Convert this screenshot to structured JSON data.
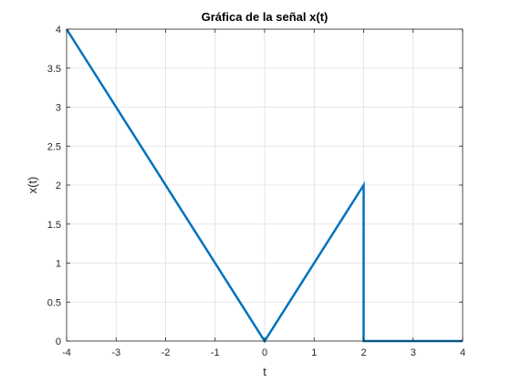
{
  "chart_data": {
    "type": "line",
    "title": "Gráfica de la señal x(t)",
    "xlabel": "t",
    "ylabel": "x(t)",
    "xlim": [
      -4,
      4
    ],
    "ylim": [
      0,
      4
    ],
    "xticks": [
      -4,
      -3,
      -2,
      -1,
      0,
      1,
      2,
      3,
      4
    ],
    "xtick_labels": [
      "-4",
      "-3",
      "-2",
      "-1",
      "0",
      "1",
      "2",
      "3",
      "4"
    ],
    "yticks": [
      0,
      0.5,
      1,
      1.5,
      2,
      2.5,
      3,
      3.5,
      4
    ],
    "ytick_labels": [
      "0",
      "0.5",
      "1",
      "1.5",
      "2",
      "2.5",
      "3",
      "3.5",
      "4"
    ],
    "grid": true,
    "series": [
      {
        "color": "#0072BD",
        "x": [
          -4,
          0,
          2,
          2,
          4
        ],
        "y": [
          4,
          0,
          2,
          0,
          0
        ]
      }
    ]
  }
}
